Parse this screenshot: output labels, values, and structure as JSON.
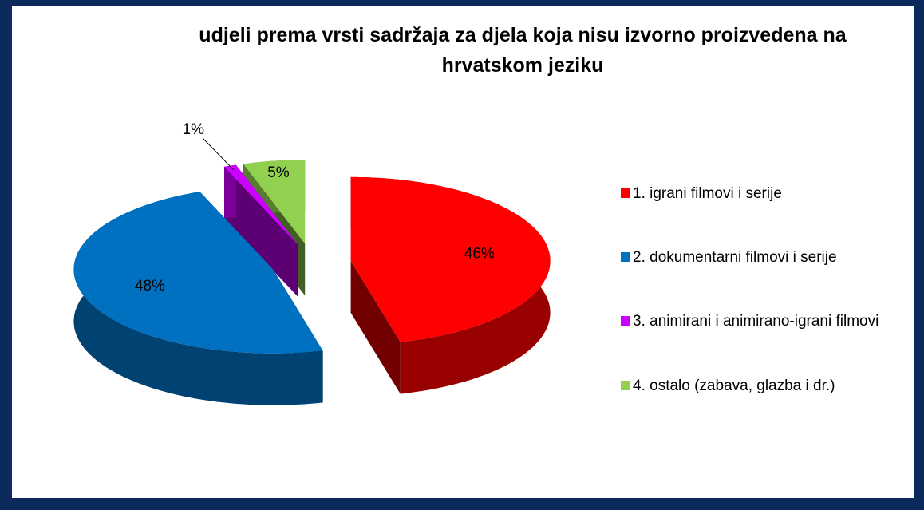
{
  "chart_data": {
    "type": "pie",
    "title": "udjeli prema vrsti sadržaja za djela koja nisu izvorno proizvedena na hrvatskom jeziku",
    "categories": [
      "1. igrani filmovi i serije",
      "2. dokumentarni filmovi i serije",
      "3. animirani i animirano-igrani filmovi",
      "4. ostalo (zabava, glazba i dr.)"
    ],
    "values": [
      46,
      48,
      1,
      5
    ],
    "value_labels": [
      "46%",
      "48%",
      "1%",
      "5%"
    ],
    "colors": [
      "#ff0000",
      "#0070c0",
      "#cc00ff",
      "#92d050"
    ],
    "legend": "right"
  }
}
